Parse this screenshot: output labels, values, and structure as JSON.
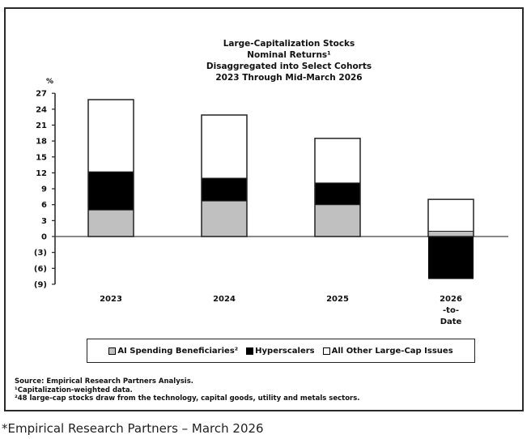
{
  "chart_data": {
    "type": "bar",
    "stacked": true,
    "title_lines": [
      "Large-Capitalization Stocks",
      "Nominal Returns¹",
      "Disaggregated into Select Cohorts",
      "2023 Through Mid-March 2026"
    ],
    "ylabel": "%",
    "ylim": [
      -9,
      27
    ],
    "yticks": [
      27,
      24,
      21,
      18,
      15,
      12,
      9,
      6,
      3,
      0,
      -3,
      -6,
      -9
    ],
    "ytick_labels": [
      "27",
      "24",
      "21",
      "18",
      "15",
      "12",
      "9",
      "6",
      "3",
      "0",
      "(3)",
      "(6)",
      "(9)"
    ],
    "categories": [
      "2023",
      "2024",
      "2025",
      "2026 -to- Date"
    ],
    "category_label_lines": [
      [
        "2023"
      ],
      [
        "2024"
      ],
      [
        "2025"
      ],
      [
        "2026",
        "-to-",
        "Date"
      ]
    ],
    "series": [
      {
        "name": "AI Spending Beneficiaries²",
        "color": "#c0c0c0",
        "values": [
          5.0,
          6.7,
          6.0,
          1.0
        ]
      },
      {
        "name": "Hyperscalers",
        "color": "#000000",
        "values": [
          7.2,
          4.3,
          4.1,
          -8.0
        ]
      },
      {
        "name": "All Other Large-Cap Issues",
        "color": "#ffffff",
        "values": [
          13.6,
          11.9,
          8.4,
          6.0
        ]
      }
    ],
    "totals_positive": [
      25.8,
      22.9,
      18.5,
      7.0
    ],
    "grid": false,
    "legend_position": "bottom"
  },
  "notes": {
    "source": "Source: Empirical Research Partners Analysis.",
    "footnote1": "¹Capitalization-weighted data.",
    "footnote2": "²48 large-cap stocks draw from the technology, capital goods, utility and metals sectors."
  },
  "caption": "*Empirical Research Partners – March 2026"
}
